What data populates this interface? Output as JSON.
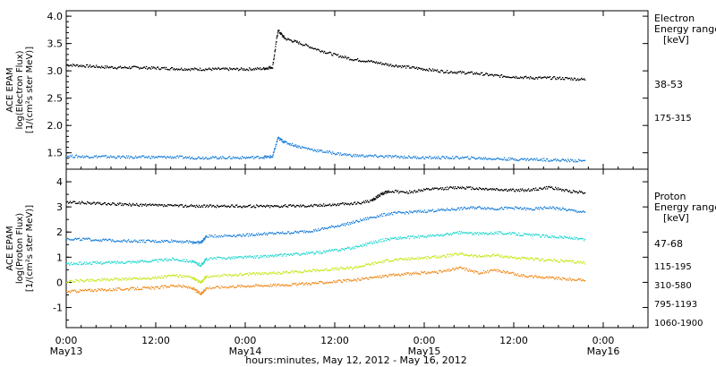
{
  "chart_data": [
    {
      "type": "scatter",
      "panel": "electron",
      "ylabel_lines": [
        "ACE EPAM",
        "log(Electron Flux)",
        "[1/(cm²s ster MeV)]"
      ],
      "ylim": [
        1.2,
        4.1
      ],
      "y_ticks": [
        "1.5",
        "2.0",
        "2.5",
        "3.0",
        "3.5",
        "4.0"
      ],
      "legend_header": [
        "Electron",
        "Energy ranges",
        "[keV]"
      ],
      "grid": false,
      "series": [
        {
          "name": "38-53",
          "color": "#000000",
          "points": [
            [
              0.0,
              3.12
            ],
            [
              0.1,
              3.1
            ],
            [
              0.2,
              3.08
            ],
            [
              0.3,
              3.07
            ],
            [
              0.4,
              3.07
            ],
            [
              0.5,
              3.06
            ],
            [
              0.6,
              3.05
            ],
            [
              0.7,
              3.04
            ],
            [
              0.8,
              3.04
            ],
            [
              0.9,
              3.04
            ],
            [
              1.0,
              3.04
            ],
            [
              1.1,
              3.05
            ],
            [
              1.15,
              3.08
            ],
            [
              1.18,
              3.75
            ],
            [
              1.22,
              3.6
            ],
            [
              1.3,
              3.52
            ],
            [
              1.4,
              3.4
            ],
            [
              1.5,
              3.3
            ],
            [
              1.6,
              3.22
            ],
            [
              1.7,
              3.18
            ],
            [
              1.8,
              3.12
            ],
            [
              1.9,
              3.08
            ],
            [
              2.0,
              3.04
            ],
            [
              2.1,
              3.0
            ],
            [
              2.2,
              2.98
            ],
            [
              2.3,
              2.96
            ],
            [
              2.4,
              2.92
            ],
            [
              2.5,
              2.9
            ],
            [
              2.6,
              2.88
            ],
            [
              2.7,
              2.88
            ],
            [
              2.8,
              2.87
            ],
            [
              2.9,
              2.85
            ]
          ]
        },
        {
          "name": "175-315",
          "color": "#1a7fdb",
          "points": [
            [
              0.0,
              1.45
            ],
            [
              0.1,
              1.44
            ],
            [
              0.2,
              1.44
            ],
            [
              0.3,
              1.43
            ],
            [
              0.4,
              1.43
            ],
            [
              0.5,
              1.43
            ],
            [
              0.6,
              1.43
            ],
            [
              0.7,
              1.42
            ],
            [
              0.8,
              1.42
            ],
            [
              0.9,
              1.42
            ],
            [
              1.0,
              1.42
            ],
            [
              1.1,
              1.43
            ],
            [
              1.15,
              1.44
            ],
            [
              1.18,
              1.78
            ],
            [
              1.22,
              1.7
            ],
            [
              1.3,
              1.62
            ],
            [
              1.4,
              1.55
            ],
            [
              1.5,
              1.5
            ],
            [
              1.6,
              1.46
            ],
            [
              1.7,
              1.45
            ],
            [
              1.8,
              1.44
            ],
            [
              1.9,
              1.43
            ],
            [
              2.0,
              1.42
            ],
            [
              2.1,
              1.42
            ],
            [
              2.2,
              1.42
            ],
            [
              2.3,
              1.41
            ],
            [
              2.4,
              1.4
            ],
            [
              2.5,
              1.39
            ],
            [
              2.6,
              1.39
            ],
            [
              2.7,
              1.38
            ],
            [
              2.8,
              1.37
            ],
            [
              2.9,
              1.36
            ]
          ]
        }
      ]
    },
    {
      "type": "scatter",
      "panel": "proton",
      "ylabel_lines": [
        "ACE EPAM",
        "log(Proton Flux)",
        "[1/(cm²s ster MeV)]"
      ],
      "ylim": [
        -1.8,
        4.5
      ],
      "y_ticks": [
        "-1",
        "0",
        "1",
        "2",
        "3",
        "4"
      ],
      "legend_header": [
        "Proton",
        "Energy ranges",
        "[keV]"
      ],
      "grid": false,
      "series": [
        {
          "name": "47-68",
          "color": "#000000",
          "points": [
            [
              0.0,
              3.2
            ],
            [
              0.1,
              3.18
            ],
            [
              0.2,
              3.15
            ],
            [
              0.3,
              3.12
            ],
            [
              0.4,
              3.1
            ],
            [
              0.5,
              3.08
            ],
            [
              0.6,
              3.07
            ],
            [
              0.7,
              3.06
            ],
            [
              0.8,
              3.05
            ],
            [
              0.9,
              3.05
            ],
            [
              1.0,
              3.05
            ],
            [
              1.1,
              3.05
            ],
            [
              1.2,
              3.06
            ],
            [
              1.3,
              3.07
            ],
            [
              1.4,
              3.08
            ],
            [
              1.5,
              3.12
            ],
            [
              1.6,
              3.15
            ],
            [
              1.7,
              3.25
            ],
            [
              1.75,
              3.5
            ],
            [
              1.8,
              3.65
            ],
            [
              1.9,
              3.6
            ],
            [
              2.0,
              3.7
            ],
            [
              2.1,
              3.75
            ],
            [
              2.2,
              3.8
            ],
            [
              2.3,
              3.75
            ],
            [
              2.4,
              3.72
            ],
            [
              2.5,
              3.68
            ],
            [
              2.6,
              3.7
            ],
            [
              2.7,
              3.8
            ],
            [
              2.8,
              3.65
            ],
            [
              2.9,
              3.6
            ]
          ]
        },
        {
          "name": "115-195",
          "color": "#1a7fdb",
          "points": [
            [
              0.0,
              1.75
            ],
            [
              0.1,
              1.73
            ],
            [
              0.2,
              1.7
            ],
            [
              0.3,
              1.68
            ],
            [
              0.4,
              1.66
            ],
            [
              0.5,
              1.65
            ],
            [
              0.6,
              1.67
            ],
            [
              0.7,
              1.62
            ],
            [
              0.75,
              1.6
            ],
            [
              0.78,
              1.85
            ],
            [
              0.9,
              1.88
            ],
            [
              1.0,
              1.9
            ],
            [
              1.1,
              1.95
            ],
            [
              1.2,
              1.98
            ],
            [
              1.3,
              2.02
            ],
            [
              1.4,
              2.1
            ],
            [
              1.5,
              2.25
            ],
            [
              1.6,
              2.4
            ],
            [
              1.7,
              2.6
            ],
            [
              1.8,
              2.75
            ],
            [
              1.9,
              2.8
            ],
            [
              2.0,
              2.85
            ],
            [
              2.1,
              2.9
            ],
            [
              2.2,
              2.95
            ],
            [
              2.3,
              3.0
            ],
            [
              2.4,
              2.95
            ],
            [
              2.5,
              2.98
            ],
            [
              2.6,
              2.92
            ],
            [
              2.7,
              3.0
            ],
            [
              2.8,
              2.9
            ],
            [
              2.9,
              2.8
            ]
          ]
        },
        {
          "name": "310-580",
          "color": "#22d8d0",
          "points": [
            [
              0.0,
              0.75
            ],
            [
              0.1,
              0.78
            ],
            [
              0.2,
              0.8
            ],
            [
              0.3,
              0.82
            ],
            [
              0.4,
              0.85
            ],
            [
              0.5,
              0.88
            ],
            [
              0.6,
              0.95
            ],
            [
              0.7,
              0.85
            ],
            [
              0.75,
              0.7
            ],
            [
              0.78,
              0.95
            ],
            [
              0.9,
              1.0
            ],
            [
              1.0,
              1.02
            ],
            [
              1.1,
              1.05
            ],
            [
              1.2,
              1.1
            ],
            [
              1.3,
              1.15
            ],
            [
              1.4,
              1.2
            ],
            [
              1.5,
              1.3
            ],
            [
              1.6,
              1.4
            ],
            [
              1.7,
              1.6
            ],
            [
              1.8,
              1.75
            ],
            [
              1.9,
              1.8
            ],
            [
              2.0,
              1.85
            ],
            [
              2.1,
              1.9
            ],
            [
              2.2,
              2.0
            ],
            [
              2.3,
              1.95
            ],
            [
              2.4,
              2.0
            ],
            [
              2.5,
              1.95
            ],
            [
              2.6,
              1.9
            ],
            [
              2.7,
              1.85
            ],
            [
              2.8,
              1.8
            ],
            [
              2.9,
              1.7
            ]
          ]
        },
        {
          "name": "795-1193",
          "color": "#c8e61e",
          "points": [
            [
              0.0,
              0.05
            ],
            [
              0.1,
              0.1
            ],
            [
              0.2,
              0.12
            ],
            [
              0.3,
              0.15
            ],
            [
              0.4,
              0.18
            ],
            [
              0.5,
              0.2
            ],
            [
              0.6,
              0.3
            ],
            [
              0.7,
              0.2
            ],
            [
              0.75,
              0.0
            ],
            [
              0.78,
              0.25
            ],
            [
              0.9,
              0.3
            ],
            [
              1.0,
              0.35
            ],
            [
              1.1,
              0.38
            ],
            [
              1.2,
              0.4
            ],
            [
              1.3,
              0.45
            ],
            [
              1.4,
              0.5
            ],
            [
              1.5,
              0.55
            ],
            [
              1.6,
              0.6
            ],
            [
              1.7,
              0.75
            ],
            [
              1.8,
              0.9
            ],
            [
              1.9,
              0.95
            ],
            [
              2.0,
              1.0
            ],
            [
              2.1,
              1.05
            ],
            [
              2.2,
              1.15
            ],
            [
              2.3,
              1.05
            ],
            [
              2.4,
              1.1
            ],
            [
              2.5,
              1.0
            ],
            [
              2.6,
              0.95
            ],
            [
              2.7,
              0.9
            ],
            [
              2.8,
              0.85
            ],
            [
              2.9,
              0.8
            ]
          ]
        },
        {
          "name": "1060-1900",
          "color": "#f08a1c",
          "points": [
            [
              0.0,
              -0.35
            ],
            [
              0.1,
              -0.3
            ],
            [
              0.2,
              -0.28
            ],
            [
              0.3,
              -0.25
            ],
            [
              0.4,
              -0.22
            ],
            [
              0.5,
              -0.2
            ],
            [
              0.6,
              -0.1
            ],
            [
              0.7,
              -0.2
            ],
            [
              0.75,
              -0.45
            ],
            [
              0.78,
              -0.2
            ],
            [
              0.9,
              -0.15
            ],
            [
              1.0,
              -0.12
            ],
            [
              1.1,
              -0.1
            ],
            [
              1.2,
              -0.08
            ],
            [
              1.3,
              -0.05
            ],
            [
              1.4,
              0.0
            ],
            [
              1.5,
              0.05
            ],
            [
              1.6,
              0.1
            ],
            [
              1.7,
              0.2
            ],
            [
              1.8,
              0.3
            ],
            [
              1.9,
              0.35
            ],
            [
              2.0,
              0.4
            ],
            [
              2.1,
              0.45
            ],
            [
              2.2,
              0.6
            ],
            [
              2.3,
              0.4
            ],
            [
              2.4,
              0.5
            ],
            [
              2.5,
              0.35
            ],
            [
              2.6,
              0.25
            ],
            [
              2.7,
              0.2
            ],
            [
              2.8,
              0.15
            ],
            [
              2.9,
              0.1
            ]
          ]
        }
      ]
    }
  ],
  "x_axis": {
    "xlim": [
      0.0,
      3.25
    ],
    "ticks": [
      {
        "value": 0.0,
        "time": "0:00",
        "date": "May13"
      },
      {
        "value": 0.5,
        "time": "12:00",
        "date": ""
      },
      {
        "value": 1.0,
        "time": "0:00",
        "date": "May14"
      },
      {
        "value": 1.5,
        "time": "12:00",
        "date": ""
      },
      {
        "value": 2.0,
        "time": "0:00",
        "date": "May15"
      },
      {
        "value": 2.5,
        "time": "12:00",
        "date": ""
      },
      {
        "value": 3.0,
        "time": "0:00",
        "date": "May16"
      }
    ],
    "xlabel": "hours:minutes, May 12, 2012 - May 16, 2012"
  }
}
